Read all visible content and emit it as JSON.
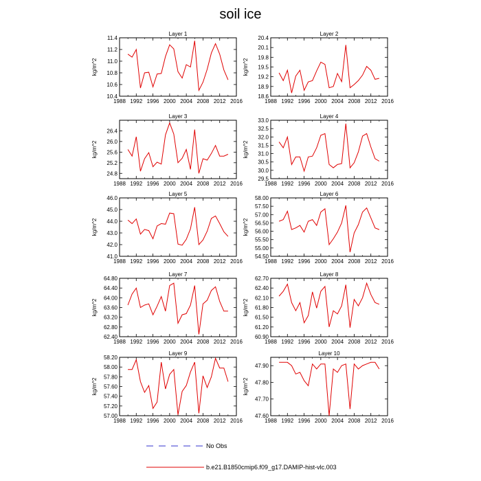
{
  "title": "soil ice",
  "legend": {
    "obs_label": "No Obs",
    "model_label": "b.e21.B1850cmip6.f09_g17.DAMIP-hist-vlc.003",
    "obs_color": "#0000cc",
    "model_color": "#e00000"
  },
  "chart_data": [
    {
      "type": "line",
      "title": "Layer 1",
      "ylabel": "kg/m^2",
      "xlim": [
        1988,
        2016
      ],
      "xticks": [
        1988,
        1992,
        1996,
        2000,
        2004,
        2008,
        2012,
        2016
      ],
      "xtick_labels": [
        "1988",
        "1992",
        "1996",
        "2000",
        "2004",
        "2008",
        "2012",
        "2016"
      ],
      "ylim": [
        10.4,
        11.4
      ],
      "yticks": [
        10.4,
        10.6,
        10.8,
        11.0,
        11.2,
        11.4
      ],
      "ytick_labels": [
        "10.4",
        "10.6",
        "10.8",
        "11.0",
        "11.2",
        "11.4"
      ],
      "series": [
        {
          "x": [
            1990,
            1991,
            1992,
            1993,
            1994,
            1995,
            1996,
            1997,
            1998,
            1999,
            2000,
            2001,
            2002,
            2003,
            2004,
            2005,
            2006,
            2007,
            2008,
            2009,
            2010,
            2011,
            2012,
            2013,
            2014
          ],
          "y": [
            11.12,
            11.07,
            11.2,
            10.54,
            10.8,
            10.81,
            10.56,
            10.78,
            10.79,
            11.08,
            11.28,
            11.21,
            10.82,
            10.71,
            10.94,
            10.9,
            11.35,
            10.5,
            10.64,
            10.86,
            11.14,
            11.3,
            11.12,
            10.85,
            10.68
          ]
        }
      ]
    },
    {
      "type": "line",
      "title": "Layer 2",
      "ylabel": "kg/m^2",
      "xlim": [
        1988,
        2016
      ],
      "xticks": [
        1988,
        1992,
        1996,
        2000,
        2004,
        2008,
        2012,
        2016
      ],
      "xtick_labels": [
        "1988",
        "1992",
        "1996",
        "2000",
        "2004",
        "2008",
        "2012",
        "2016"
      ],
      "ylim": [
        18.6,
        20.4
      ],
      "yticks": [
        18.6,
        18.9,
        19.2,
        19.5,
        19.8,
        20.1,
        20.4
      ],
      "ytick_labels": [
        "18.6",
        "18.9",
        "19.2",
        "19.5",
        "19.8",
        "20.1",
        "20.4"
      ],
      "series": [
        {
          "x": [
            1990,
            1991,
            1992,
            1993,
            1994,
            1995,
            1996,
            1997,
            1998,
            1999,
            2000,
            2001,
            2002,
            2003,
            2004,
            2005,
            2006,
            2007,
            2008,
            2009,
            2010,
            2011,
            2012,
            2013,
            2014
          ],
          "y": [
            19.32,
            19.08,
            19.4,
            18.7,
            19.22,
            19.4,
            18.78,
            19.04,
            19.08,
            19.38,
            19.65,
            19.58,
            18.86,
            18.9,
            19.3,
            19.05,
            20.18,
            18.86,
            18.96,
            19.08,
            19.25,
            19.52,
            19.4,
            19.12,
            19.15
          ]
        }
      ]
    },
    {
      "type": "line",
      "title": "Layer 3",
      "ylabel": "kg/m^2",
      "xlim": [
        1988,
        2016
      ],
      "xticks": [
        1988,
        1992,
        1996,
        2000,
        2004,
        2008,
        2012,
        2016
      ],
      "xtick_labels": [
        "1988",
        "1992",
        "1996",
        "2000",
        "2004",
        "2008",
        "2012",
        "2016"
      ],
      "ylim": [
        24.6,
        26.8
      ],
      "yticks": [
        24.8,
        25.2,
        25.6,
        26.0,
        26.4
      ],
      "ytick_labels": [
        "24.8",
        "25.2",
        "25.6",
        "26.0",
        "26.4"
      ],
      "series": [
        {
          "x": [
            1990,
            1991,
            1992,
            1993,
            1994,
            1995,
            1996,
            1997,
            1998,
            1999,
            2000,
            2001,
            2002,
            2003,
            2004,
            2005,
            2006,
            2007,
            2008,
            2009,
            2010,
            2011,
            2012,
            2013,
            2014
          ],
          "y": [
            25.7,
            25.45,
            26.18,
            24.88,
            25.35,
            25.58,
            25.05,
            25.22,
            25.15,
            26.25,
            26.7,
            26.28,
            25.2,
            25.37,
            25.7,
            24.95,
            26.45,
            24.8,
            25.35,
            25.3,
            25.55,
            25.85,
            25.45,
            25.45,
            25.52
          ]
        }
      ]
    },
    {
      "type": "line",
      "title": "Layer 4",
      "ylabel": "kg/m^2",
      "xlim": [
        1988,
        2016
      ],
      "xticks": [
        1988,
        1992,
        1996,
        2000,
        2004,
        2008,
        2012,
        2016
      ],
      "xtick_labels": [
        "1988",
        "1992",
        "1996",
        "2000",
        "2004",
        "2008",
        "2012",
        "2016"
      ],
      "ylim": [
        29.5,
        33.0
      ],
      "yticks": [
        29.5,
        30.0,
        30.5,
        31.0,
        31.5,
        32.0,
        32.5,
        33.0
      ],
      "ytick_labels": [
        "29.5",
        "30.0",
        "30.5",
        "31.0",
        "31.5",
        "32.0",
        "32.5",
        "33.0"
      ],
      "series": [
        {
          "x": [
            1990,
            1991,
            1992,
            1993,
            1994,
            1995,
            1996,
            1997,
            1998,
            1999,
            2000,
            2001,
            2002,
            2003,
            2004,
            2005,
            2006,
            2007,
            2008,
            2009,
            2010,
            2011,
            2012,
            2013,
            2014
          ],
          "y": [
            31.7,
            31.35,
            32.0,
            30.35,
            30.8,
            30.8,
            29.95,
            30.8,
            30.85,
            31.35,
            32.1,
            32.2,
            30.35,
            30.15,
            30.35,
            30.4,
            32.8,
            30.15,
            30.45,
            31.1,
            32.05,
            32.2,
            31.4,
            30.7,
            30.55
          ]
        }
      ]
    },
    {
      "type": "line",
      "title": "Layer 5",
      "ylabel": "kg/m^2",
      "xlim": [
        1988,
        2016
      ],
      "xticks": [
        1988,
        1992,
        1996,
        2000,
        2004,
        2008,
        2012,
        2016
      ],
      "xtick_labels": [
        "1988",
        "1992",
        "1996",
        "2000",
        "2004",
        "2008",
        "2012",
        "2016"
      ],
      "ylim": [
        41.0,
        46.0
      ],
      "yticks": [
        41.0,
        42.0,
        43.0,
        44.0,
        45.0,
        46.0
      ],
      "ytick_labels": [
        "41.0",
        "42.0",
        "43.0",
        "44.0",
        "45.0",
        "46.0"
      ],
      "series": [
        {
          "x": [
            1990,
            1991,
            1992,
            1993,
            1994,
            1995,
            1996,
            1997,
            1998,
            1999,
            2000,
            2001,
            2002,
            2003,
            2004,
            2005,
            2006,
            2007,
            2008,
            2009,
            2010,
            2011,
            2012,
            2013,
            2014
          ],
          "y": [
            44.1,
            43.8,
            44.2,
            42.9,
            43.3,
            43.2,
            42.5,
            43.6,
            43.8,
            43.75,
            44.7,
            44.65,
            42.05,
            41.95,
            42.45,
            43.35,
            45.2,
            42.0,
            42.4,
            43.15,
            44.25,
            44.45,
            43.8,
            43.1,
            42.7
          ]
        }
      ]
    },
    {
      "type": "line",
      "title": "Layer 6",
      "ylabel": "kg/m^2",
      "xlim": [
        1988,
        2016
      ],
      "xticks": [
        1988,
        1992,
        1996,
        2000,
        2004,
        2008,
        2012,
        2016
      ],
      "xtick_labels": [
        "1988",
        "1992",
        "1996",
        "2000",
        "2004",
        "2008",
        "2012",
        "2016"
      ],
      "ylim": [
        54.5,
        58.0
      ],
      "yticks": [
        54.5,
        55.0,
        55.5,
        56.0,
        56.5,
        57.0,
        57.5,
        58.0
      ],
      "ytick_labels": [
        "54.50",
        "55.00",
        "55.50",
        "56.00",
        "56.50",
        "57.00",
        "57.50",
        "58.00"
      ],
      "series": [
        {
          "x": [
            1990,
            1991,
            1992,
            1993,
            1994,
            1995,
            1996,
            1997,
            1998,
            1999,
            2000,
            2001,
            2002,
            2003,
            2004,
            2005,
            2006,
            2007,
            2008,
            2009,
            2010,
            2011,
            2012,
            2013,
            2014
          ],
          "y": [
            56.6,
            56.7,
            57.2,
            56.1,
            56.2,
            56.35,
            55.95,
            56.6,
            56.7,
            56.35,
            57.15,
            57.35,
            55.2,
            55.55,
            55.95,
            56.5,
            57.55,
            54.75,
            55.9,
            56.4,
            57.15,
            57.4,
            56.8,
            56.2,
            56.1
          ]
        }
      ]
    },
    {
      "type": "line",
      "title": "Layer 7",
      "ylabel": "kg/m^2",
      "xlim": [
        1988,
        2016
      ],
      "xticks": [
        1988,
        1992,
        1996,
        2000,
        2004,
        2008,
        2012,
        2016
      ],
      "xtick_labels": [
        "1988",
        "1992",
        "1996",
        "2000",
        "2004",
        "2008",
        "2012",
        "2016"
      ],
      "ylim": [
        62.4,
        64.8
      ],
      "yticks": [
        62.4,
        62.8,
        63.2,
        63.6,
        64.0,
        64.4,
        64.8
      ],
      "ytick_labels": [
        "62.40",
        "62.80",
        "63.20",
        "63.60",
        "64.00",
        "64.40",
        "64.80"
      ],
      "series": [
        {
          "x": [
            1990,
            1991,
            1992,
            1993,
            1994,
            1995,
            1996,
            1997,
            1998,
            1999,
            2000,
            2001,
            2002,
            2003,
            2004,
            2005,
            2006,
            2007,
            2008,
            2009,
            2010,
            2011,
            2012,
            2013,
            2014
          ],
          "y": [
            63.7,
            64.15,
            64.4,
            63.6,
            63.7,
            63.75,
            63.3,
            63.65,
            64.05,
            63.45,
            64.5,
            64.6,
            62.95,
            63.3,
            63.35,
            63.7,
            64.5,
            62.5,
            63.75,
            63.9,
            64.3,
            64.45,
            63.85,
            63.45,
            63.45
          ]
        }
      ]
    },
    {
      "type": "line",
      "title": "Layer 8",
      "ylabel": "kg/m^2",
      "xlim": [
        1988,
        2016
      ],
      "xticks": [
        1988,
        1992,
        1996,
        2000,
        2004,
        2008,
        2012,
        2016
      ],
      "xtick_labels": [
        "1988",
        "1992",
        "1996",
        "2000",
        "2004",
        "2008",
        "2012",
        "2016"
      ],
      "ylim": [
        60.9,
        62.7
      ],
      "yticks": [
        60.9,
        61.2,
        61.5,
        61.8,
        62.1,
        62.4,
        62.7
      ],
      "ytick_labels": [
        "60.90",
        "61.20",
        "61.50",
        "61.80",
        "62.10",
        "62.40",
        "62.70"
      ],
      "series": [
        {
          "x": [
            1990,
            1991,
            1992,
            1993,
            1994,
            1995,
            1996,
            1997,
            1998,
            1999,
            2000,
            2001,
            2002,
            2003,
            2004,
            2005,
            2006,
            2007,
            2008,
            2009,
            2010,
            2011,
            2012,
            2013,
            2014
          ],
          "y": [
            62.15,
            62.3,
            62.52,
            61.95,
            61.7,
            61.95,
            61.33,
            61.55,
            62.28,
            61.78,
            62.3,
            62.45,
            61.2,
            61.7,
            61.6,
            61.85,
            62.5,
            61.18,
            62.05,
            61.85,
            62.1,
            62.55,
            62.2,
            61.95,
            61.9
          ]
        }
      ]
    },
    {
      "type": "line",
      "title": "Layer 9",
      "ylabel": "kg/m^2",
      "xlim": [
        1988,
        2016
      ],
      "xticks": [
        1988,
        1992,
        1996,
        2000,
        2004,
        2008,
        2012,
        2016
      ],
      "xtick_labels": [
        "1988",
        "1992",
        "1996",
        "2000",
        "2004",
        "2008",
        "2012",
        "2016"
      ],
      "ylim": [
        57.0,
        58.2
      ],
      "yticks": [
        57.0,
        57.2,
        57.4,
        57.6,
        57.8,
        58.0,
        58.2
      ],
      "ytick_labels": [
        "57.00",
        "57.20",
        "57.40",
        "57.60",
        "57.80",
        "58.00",
        "58.20"
      ],
      "series": [
        {
          "x": [
            1990,
            1991,
            1992,
            1993,
            1994,
            1995,
            1996,
            1997,
            1998,
            1999,
            2000,
            2001,
            2002,
            2003,
            2004,
            2005,
            2006,
            2007,
            2008,
            2009,
            2010,
            2011,
            2012,
            2013,
            2014
          ],
          "y": [
            57.95,
            57.95,
            58.15,
            57.7,
            57.48,
            57.62,
            57.15,
            57.28,
            58.1,
            57.55,
            57.85,
            57.95,
            57.02,
            57.5,
            57.62,
            57.9,
            58.1,
            57.05,
            57.82,
            57.58,
            57.8,
            58.18,
            57.98,
            57.98,
            57.7
          ]
        }
      ]
    },
    {
      "type": "line",
      "title": "Layer 10",
      "ylabel": "kg/m^2",
      "xlim": [
        1988,
        2016
      ],
      "xticks": [
        1988,
        1992,
        1996,
        2000,
        2004,
        2008,
        2012,
        2016
      ],
      "xtick_labels": [
        "1988",
        "1992",
        "1996",
        "2000",
        "2004",
        "2008",
        "2012",
        "2016"
      ],
      "ylim": [
        47.6,
        47.95
      ],
      "yticks": [
        47.6,
        47.7,
        47.8,
        47.9
      ],
      "ytick_labels": [
        "47.60",
        "47.70",
        "47.80",
        "47.90"
      ],
      "series": [
        {
          "x": [
            1990,
            1991,
            1992,
            1993,
            1994,
            1995,
            1996,
            1997,
            1998,
            1999,
            2000,
            2001,
            2002,
            2003,
            2004,
            2005,
            2006,
            2007,
            2008,
            2009,
            2010,
            2011,
            2012,
            2013,
            2014
          ],
          "y": [
            47.92,
            47.92,
            47.92,
            47.9,
            47.85,
            47.86,
            47.81,
            47.78,
            47.91,
            47.88,
            47.91,
            47.91,
            47.6,
            47.88,
            47.86,
            47.9,
            47.91,
            47.64,
            47.91,
            47.88,
            47.9,
            47.91,
            47.92,
            47.92,
            47.88
          ]
        }
      ]
    }
  ]
}
